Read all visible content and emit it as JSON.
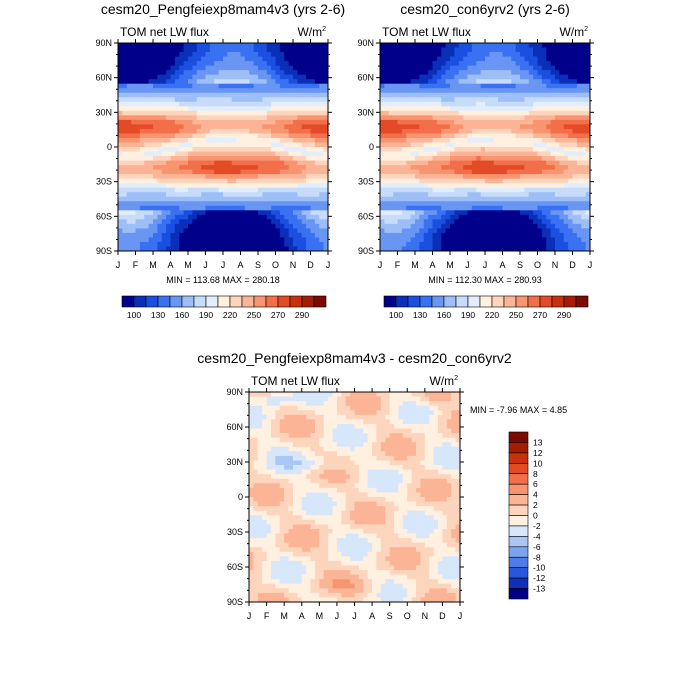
{
  "chart_data": [
    {
      "type": "heatmap",
      "title": "cesm20_Pengfeiexp8mam4v3 (yrs 2-6)",
      "left_label": "TOM net LW flux",
      "units_base": "W/m",
      "units_exp": "2",
      "x_categories": [
        "J",
        "F",
        "M",
        "A",
        "M",
        "J",
        "J",
        "A",
        "S",
        "O",
        "N",
        "D",
        "J"
      ],
      "y_ticks": [
        "90N",
        "60N",
        "30N",
        "0",
        "30S",
        "60S",
        "90S"
      ],
      "stats": {
        "min_label": "MIN =",
        "min": "113.68",
        "max_label": "MAX =",
        "max": "280.18"
      },
      "colorbar": {
        "levels": [
          "100",
          "130",
          "160",
          "190",
          "220",
          "250",
          "270",
          "290"
        ],
        "colors": [
          "#00008b",
          "#0a2fb8",
          "#1a4fe0",
          "#3a70f2",
          "#6996f2",
          "#9dbef7",
          "#c7dcfa",
          "#e3eefc",
          "#fff0e0",
          "#fdd5bd",
          "#fbb596",
          "#f99470",
          "#f26f4a",
          "#e34a26",
          "#c9300c",
          "#a51c05",
          "#7d0a00"
        ]
      },
      "field": "lw_mean",
      "field_params": {
        "offset": 0
      }
    },
    {
      "type": "heatmap",
      "title": "cesm20_con6yrv2 (yrs 2-6)",
      "left_label": "TOM net LW flux",
      "units_base": "W/m",
      "units_exp": "2",
      "x_categories": [
        "J",
        "F",
        "M",
        "A",
        "M",
        "J",
        "J",
        "A",
        "S",
        "O",
        "N",
        "D",
        "J"
      ],
      "y_ticks": [
        "90N",
        "60N",
        "30N",
        "0",
        "30S",
        "60S",
        "90S"
      ],
      "stats": {
        "min_label": "MIN =",
        "min": "112.30",
        "max_label": "MAX =",
        "max": "280.93"
      },
      "colorbar": {
        "levels": [
          "100",
          "130",
          "160",
          "190",
          "220",
          "250",
          "270",
          "290"
        ],
        "colors": [
          "#00008b",
          "#0a2fb8",
          "#1a4fe0",
          "#3a70f2",
          "#6996f2",
          "#9dbef7",
          "#c7dcfa",
          "#e3eefc",
          "#fff0e0",
          "#fdd5bd",
          "#fbb596",
          "#f99470",
          "#f26f4a",
          "#e34a26",
          "#c9300c",
          "#a51c05",
          "#7d0a00"
        ]
      },
      "field": "lw_mean",
      "field_params": {
        "offset": 0.6
      }
    },
    {
      "type": "heatmap",
      "title": "cesm20_Pengfeiexp8mam4v3 - cesm20_con6yrv2",
      "left_label": "TOM net LW flux",
      "units_base": "W/m",
      "units_exp": "2",
      "x_categories": [
        "J",
        "F",
        "M",
        "A",
        "M",
        "J",
        "J",
        "A",
        "S",
        "O",
        "N",
        "D",
        "J"
      ],
      "y_ticks": [
        "90N",
        "60N",
        "30N",
        "0",
        "30S",
        "60S",
        "90S"
      ],
      "stats": {
        "min_label": "MIN =",
        "min": "-7.96",
        "max_label": "MAX =",
        "max": "4.85"
      },
      "colorbar": {
        "levels": [
          "13",
          "12",
          "10",
          "8",
          "6",
          "4",
          "2",
          "0",
          "-2",
          "-4",
          "-6",
          "-8",
          "-10",
          "-12",
          "-13"
        ],
        "colors": [
          "#7d0a00",
          "#a51c05",
          "#c9300c",
          "#e34a26",
          "#f26f4a",
          "#f99470",
          "#fbb596",
          "#fdd5bd",
          "#fff0e0",
          "#d7e7fb",
          "#a9c6f5",
          "#7ca3ee",
          "#4f7ce8",
          "#2a55dc",
          "#1030bb",
          "#00008b"
        ]
      },
      "field": "lw_diff",
      "field_params": {
        "offset": 0
      }
    }
  ]
}
